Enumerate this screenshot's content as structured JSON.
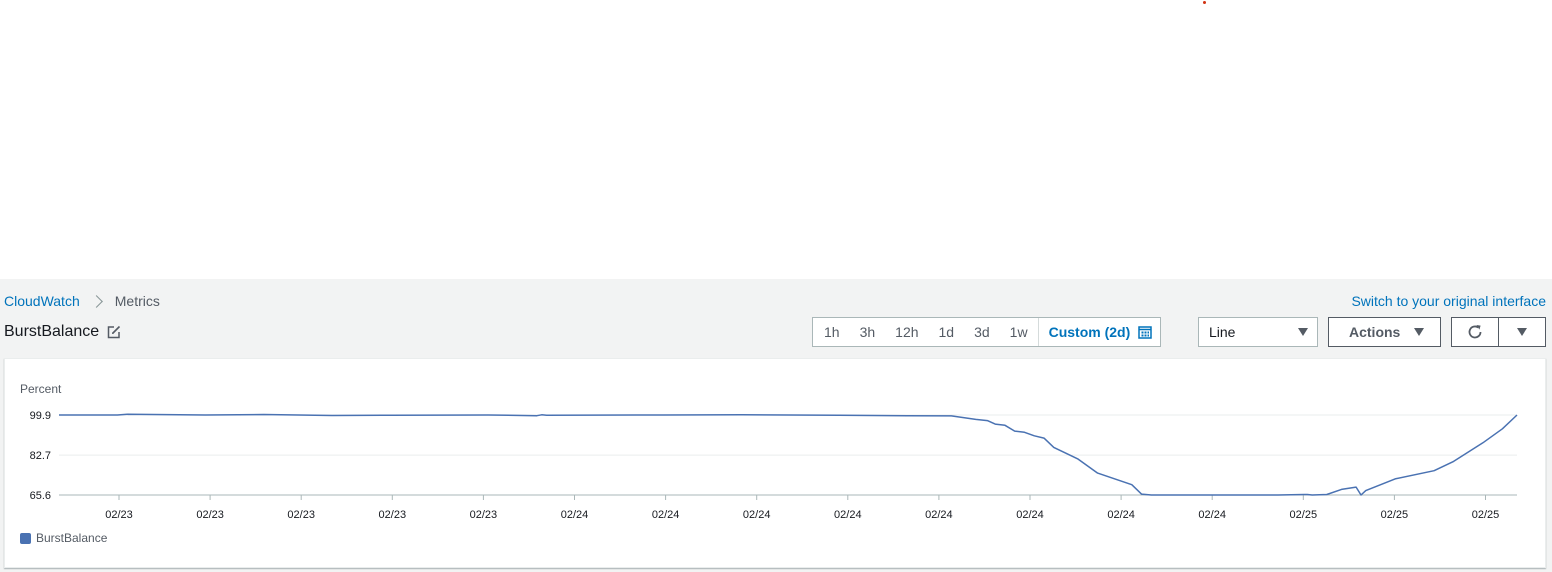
{
  "breadcrumb": {
    "root": "CloudWatch",
    "current": "Metrics"
  },
  "switch_interface_label": "Switch to your original interface",
  "page_title": "BurstBalance",
  "time_ranges": [
    "1h",
    "3h",
    "12h",
    "1d",
    "3d",
    "1w"
  ],
  "custom_range_label": "Custom (2d)",
  "chart_type_select": {
    "value": "Line"
  },
  "actions_label": "Actions",
  "colors": {
    "series": "#4a72b2",
    "link": "#0073bb"
  },
  "chart_data": {
    "type": "line",
    "ylabel": "Percent",
    "y_ticks": [
      99.9,
      82.7,
      65.6
    ],
    "ylim": [
      65.6,
      99.9
    ],
    "x_ticks": [
      "02/23",
      "02/23",
      "02/23",
      "02/23",
      "02/23",
      "02/24",
      "02/24",
      "02/24",
      "02/24",
      "02/24",
      "02/24",
      "02/24",
      "02/24",
      "02/25",
      "02/25",
      "02/25"
    ],
    "grid": true,
    "legend_position": "bottom-left",
    "series": [
      {
        "name": "BurstBalance",
        "x": [
          0,
          60,
          70,
          150,
          210,
          280,
          340,
          440,
          490,
          495,
          500,
          620,
          700,
          800,
          870,
          915,
          940,
          952,
          960,
          970,
          980,
          990,
          1000,
          1010,
          1020,
          1030,
          1045,
          1065,
          1100,
          1110,
          1120,
          1150,
          1190,
          1230,
          1250,
          1277,
          1280,
          1285,
          1300,
          1315,
          1330,
          1335,
          1340,
          1370,
          1410,
          1430,
          1460,
          1480,
          1495
        ],
        "y": [
          99.9,
          99.9,
          100.2,
          99.9,
          100.1,
          99.7,
          99.8,
          99.9,
          99.6,
          100.0,
          99.8,
          99.9,
          100.0,
          99.8,
          99.6,
          99.5,
          98.0,
          97.5,
          96.0,
          95.5,
          93.0,
          92.5,
          91.0,
          90.0,
          86.0,
          84.0,
          81.0,
          75.0,
          70.0,
          66.0,
          65.6,
          65.6,
          65.6,
          65.6,
          65.6,
          65.8,
          65.8,
          65.6,
          65.8,
          68.0,
          69.0,
          65.6,
          67.5,
          72.5,
          76.0,
          80.0,
          88.0,
          94.0,
          99.9
        ]
      }
    ]
  }
}
